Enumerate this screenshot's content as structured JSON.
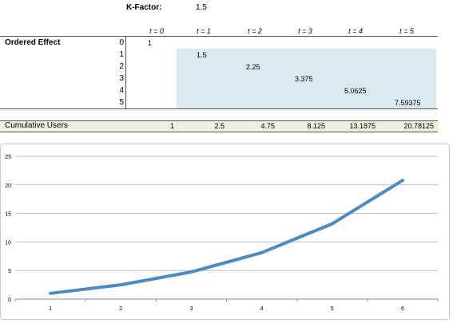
{
  "kfactor": {
    "label": "K-Factor:",
    "value": "1.5"
  },
  "time_headers": [
    "t = 0",
    "t = 1",
    "t = 2",
    "t = 3",
    "t = 4",
    "t = 5"
  ],
  "ordered_effect": {
    "label": "Ordered Effect",
    "indices": [
      "0",
      "1",
      "2",
      "3",
      "4",
      "5"
    ],
    "values": [
      "1",
      "1.5",
      "2.25",
      "3.375",
      "5.0625",
      "7.59375"
    ]
  },
  "cumulative": {
    "label": "Cumulative Users",
    "values": [
      "1",
      "2.5",
      "4.75",
      "8.125",
      "13.1875",
      "20.78125"
    ]
  },
  "colors": {
    "shade": "#dbeaf1",
    "cumulative_bg": "#edf0dd",
    "line": "#4a8bc2",
    "grid": "#c0c0c0"
  },
  "chart_data": {
    "type": "line",
    "x": [
      1,
      2,
      3,
      4,
      5,
      6
    ],
    "series": [
      {
        "values": [
          1,
          2.5,
          4.75,
          8.125,
          13.1875,
          20.78125
        ]
      }
    ],
    "x_tick_labels": [
      "1",
      "2",
      "3",
      "4",
      "5",
      "6"
    ],
    "y_tick_labels": [
      "0",
      "5",
      "10",
      "15",
      "20",
      "25"
    ],
    "ylim": [
      0,
      25
    ],
    "grid": true,
    "legend": "none"
  }
}
